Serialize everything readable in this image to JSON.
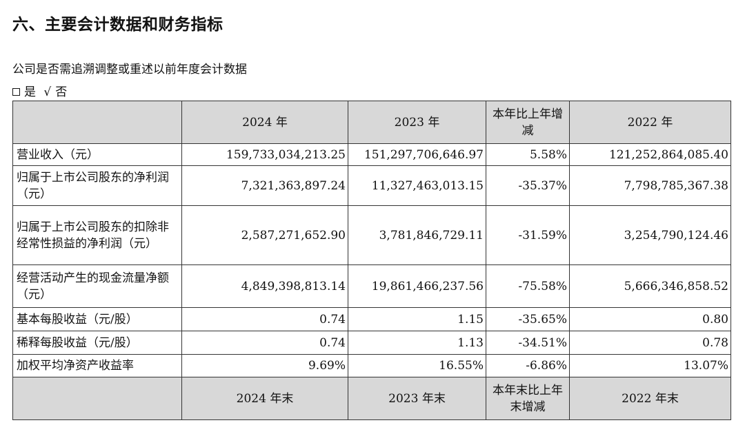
{
  "heading": "六、主要会计数据和财务指标",
  "question": "公司是否需追溯调整或重述以前年度会计数据",
  "choice": {
    "yes": "是",
    "check": "√",
    "no": "否"
  },
  "header": [
    "2024 年",
    "2023 年",
    "本年比上年增减",
    "2022 年"
  ],
  "rows": [
    {
      "label": "营业收入（元）",
      "values": [
        "159,733,034,213.25",
        "151,297,706,646.97",
        "5.58%",
        "121,252,864,085.40"
      ]
    },
    {
      "label": "归属于上市公司股东的净利润（元）",
      "values": [
        "7,321,363,897.24",
        "11,327,463,013.15",
        "-35.37%",
        "7,798,785,367.38"
      ]
    },
    {
      "label": "归属于上市公司股东的扣除非经常性损益的净利润（元）",
      "values": [
        "2,587,271,652.90",
        "3,781,846,729.11",
        "-31.59%",
        "3,254,790,124.46"
      ]
    },
    {
      "label": "经营活动产生的现金流量净额（元）",
      "values": [
        "4,849,398,813.14",
        "19,861,466,237.56",
        "-75.58%",
        "5,666,346,858.52"
      ]
    },
    {
      "label": "基本每股收益（元/股）",
      "values": [
        "0.74",
        "1.15",
        "-35.65%",
        "0.80"
      ]
    },
    {
      "label": "稀释每股收益（元/股）",
      "values": [
        "0.74",
        "1.13",
        "-34.51%",
        "0.78"
      ]
    },
    {
      "label": "加权平均净资产收益率",
      "values": [
        "9.69%",
        "16.55%",
        "-6.86%",
        "13.07%"
      ]
    }
  ],
  "header2": [
    "2024 年末",
    "2023 年末",
    "本年末比上年末增减",
    "2022 年末"
  ]
}
